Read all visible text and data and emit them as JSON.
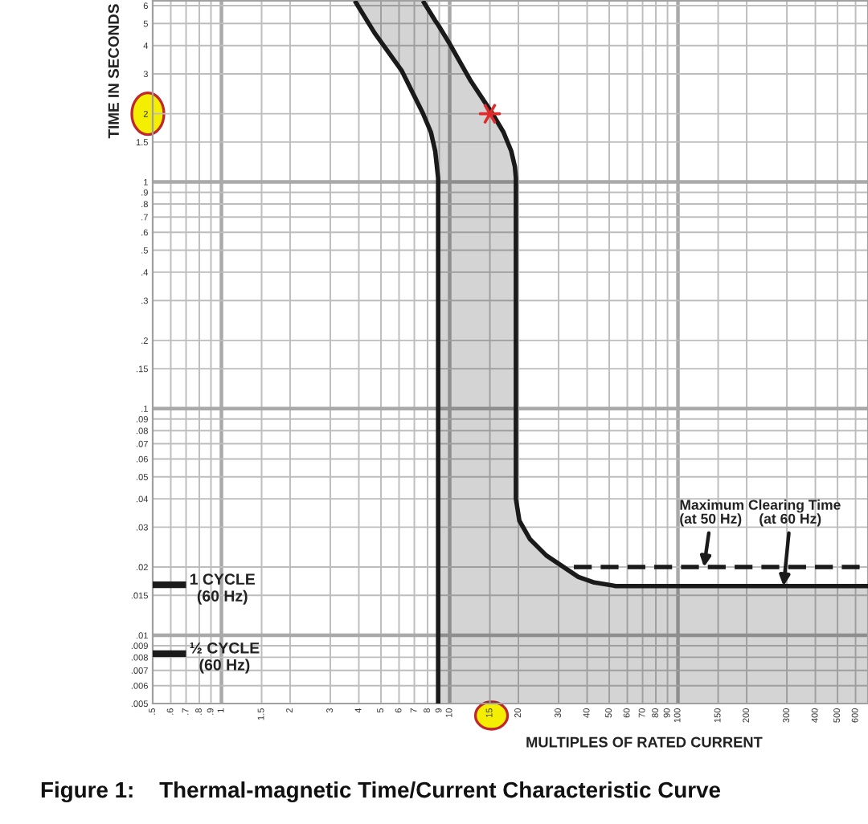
{
  "chart_data": {
    "type": "line",
    "title": "Figure 1:    Thermal-magnetic Time/Current Characteristic Curve",
    "xlabel": "MULTIPLES OF RATED CURRENT",
    "ylabel": "TIME IN SECONDS",
    "log": "xy",
    "xlim": [
      0.5,
      680
    ],
    "ylim": [
      0.005,
      6.3
    ],
    "xticks": [
      {
        "value": 0.5,
        "label": ".5"
      },
      {
        "value": 0.6,
        "label": ".6"
      },
      {
        "value": 0.7,
        "label": ".7"
      },
      {
        "value": 0.8,
        "label": ".8"
      },
      {
        "value": 0.9,
        "label": ".9"
      },
      1,
      1.5,
      2,
      3,
      4,
      5,
      6,
      7,
      8,
      9,
      10,
      15,
      20,
      30,
      40,
      50,
      60,
      70,
      80,
      90,
      100,
      150,
      200,
      300,
      400,
      500,
      600
    ],
    "yticks": [
      {
        "value": 0.005,
        "label": ".005"
      },
      {
        "value": 0.006,
        "label": ".006"
      },
      {
        "value": 0.007,
        "label": ".007"
      },
      {
        "value": 0.008,
        "label": ".008"
      },
      {
        "value": 0.009,
        "label": ".009"
      },
      {
        "value": 0.01,
        "label": ".01"
      },
      {
        "value": 0.015,
        "label": ".015"
      },
      {
        "value": 0.02,
        "label": ".02"
      },
      {
        "value": 0.03,
        "label": ".03"
      },
      {
        "value": 0.04,
        "label": ".04"
      },
      {
        "value": 0.05,
        "label": ".05"
      },
      {
        "value": 0.06,
        "label": ".06"
      },
      {
        "value": 0.07,
        "label": ".07"
      },
      {
        "value": 0.08,
        "label": ".08"
      },
      {
        "value": 0.09,
        "label": ".09"
      },
      {
        "value": 0.1,
        "label": ".1"
      },
      {
        "value": 0.15,
        "label": ".15"
      },
      {
        "value": 0.2,
        "label": ".2"
      },
      {
        "value": 0.3,
        "label": ".3"
      },
      {
        "value": 0.4,
        "label": ".4"
      },
      {
        "value": 0.5,
        "label": ".5"
      },
      {
        "value": 0.6,
        "label": ".6"
      },
      {
        "value": 0.7,
        "label": ".7"
      },
      {
        "value": 0.8,
        "label": ".8"
      },
      {
        "value": 0.9,
        "label": ".9"
      },
      1,
      1.5,
      2,
      3,
      4,
      5,
      6
    ],
    "grid": true,
    "series": [
      {
        "color": "#1a1a1a",
        "x": [
          3.84,
          4.69,
          6.15,
          7.63,
          8.27,
          8.64,
          8.9,
          8.9
        ],
        "values": [
          6.3,
          4.54,
          3.11,
          2.01,
          1.66,
          1.37,
          1.04,
          0.005
        ]
      },
      {
        "color": "#1a1a1a",
        "x": [
          3.84,
          4.69,
          6.15,
          7.63,
          8.27,
          8.64,
          8.9,
          8.9,
          10,
          12.4,
          15.4,
          17.2,
          18.6,
          19.3,
          19.5,
          19.5,
          20.2,
          22.5,
          26.5,
          31.1,
          36.6,
          43,
          53.4,
          680
        ],
        "values": [
          null,
          null,
          null,
          6.3,
          5.53,
          5.15,
          4.93,
          4.93,
          4.07,
          2.78,
          2.0,
          1.66,
          1.37,
          1.17,
          1.04,
          0.04,
          0.032,
          0.0265,
          0.0225,
          0.0202,
          0.0181,
          0.0171,
          0.0165,
          0.0165
        ],
        "lower": [
          6.3,
          4.54,
          3.11,
          2.01,
          1.66,
          1.37,
          1.04,
          0.005,
          0.005,
          0.005,
          0.005,
          0.005,
          0.005,
          0.005,
          0.005,
          0.005,
          0.005,
          0.005,
          0.005,
          0.005,
          0.005,
          0.005,
          0.005,
          0.005
        ],
        "upper": [
          6.3,
          6.3,
          6.3,
          6.3,
          5.53,
          5.15,
          4.93,
          4.93,
          4.07,
          2.78,
          2.0,
          1.66,
          1.37,
          1.17,
          1.04,
          0.04,
          0.032,
          0.0265,
          0.0225,
          0.0202,
          0.0181,
          0.0171,
          0.0165,
          0.0165
        ]
      },
      {
        "color": "#1a1a1a",
        "line_style": "dashed",
        "x": [
          35,
          680
        ],
        "values": [
          0.02,
          0.02
        ]
      },
      {
        "name": "1 CYCLE\n(60 Hz)",
        "color": "#1a1a1a",
        "x": [
          0.5,
          0.7
        ],
        "values": [
          0.0167,
          0.0167
        ]
      },
      {
        "name": "½ CYCLE\n(60 Hz)",
        "color": "#1a1a1a",
        "x": [
          0.5,
          0.7
        ],
        "values": [
          0.0083,
          0.0083
        ]
      },
      {
        "type": "scatter",
        "color": "#e02b2b",
        "marker": "cross",
        "x": [
          15
        ],
        "values": [
          2
        ]
      }
    ],
    "annotations": [
      "Maximum Clearing Time",
      {
        "text": "(at 50 Hz)",
        "x": 130,
        "y": 0.02
      },
      {
        "text": "(at 60 Hz)",
        "x": 290,
        "y": 0.0165
      }
    ]
  }
}
